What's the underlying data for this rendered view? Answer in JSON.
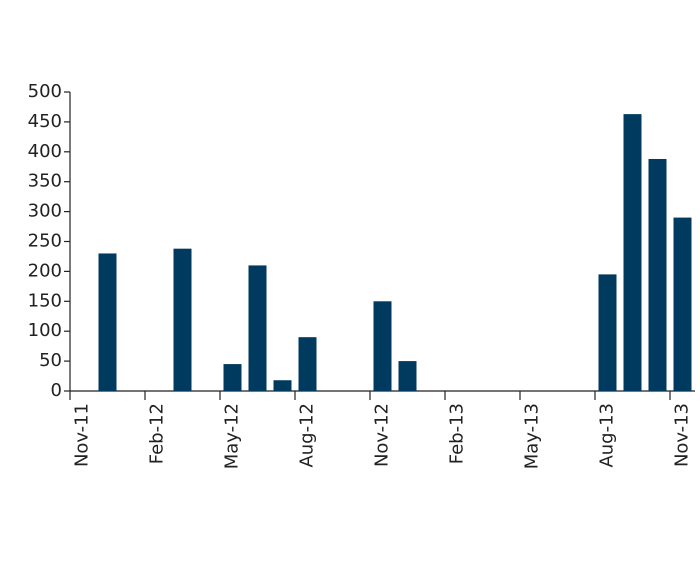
{
  "chart_data": {
    "type": "bar",
    "categories": [
      "Nov-11",
      null,
      null,
      "Feb-12",
      null,
      null,
      "May-12",
      null,
      null,
      "Aug-12",
      null,
      null,
      "Nov-12",
      null,
      null,
      "Feb-13",
      null,
      null,
      "May-13",
      null,
      null,
      "Aug-13",
      null,
      null,
      "Nov-13"
    ],
    "values": [
      0,
      230,
      0,
      0,
      238,
      0,
      45,
      210,
      18,
      90,
      0,
      0,
      150,
      50,
      0,
      0,
      0,
      0,
      0,
      0,
      0,
      195,
      463,
      388,
      290
    ],
    "color": "#003a5e",
    "ylim": [
      0,
      500
    ],
    "yticks": [
      0,
      50,
      100,
      150,
      200,
      250,
      300,
      350,
      400,
      450,
      500
    ],
    "grid": false
  }
}
